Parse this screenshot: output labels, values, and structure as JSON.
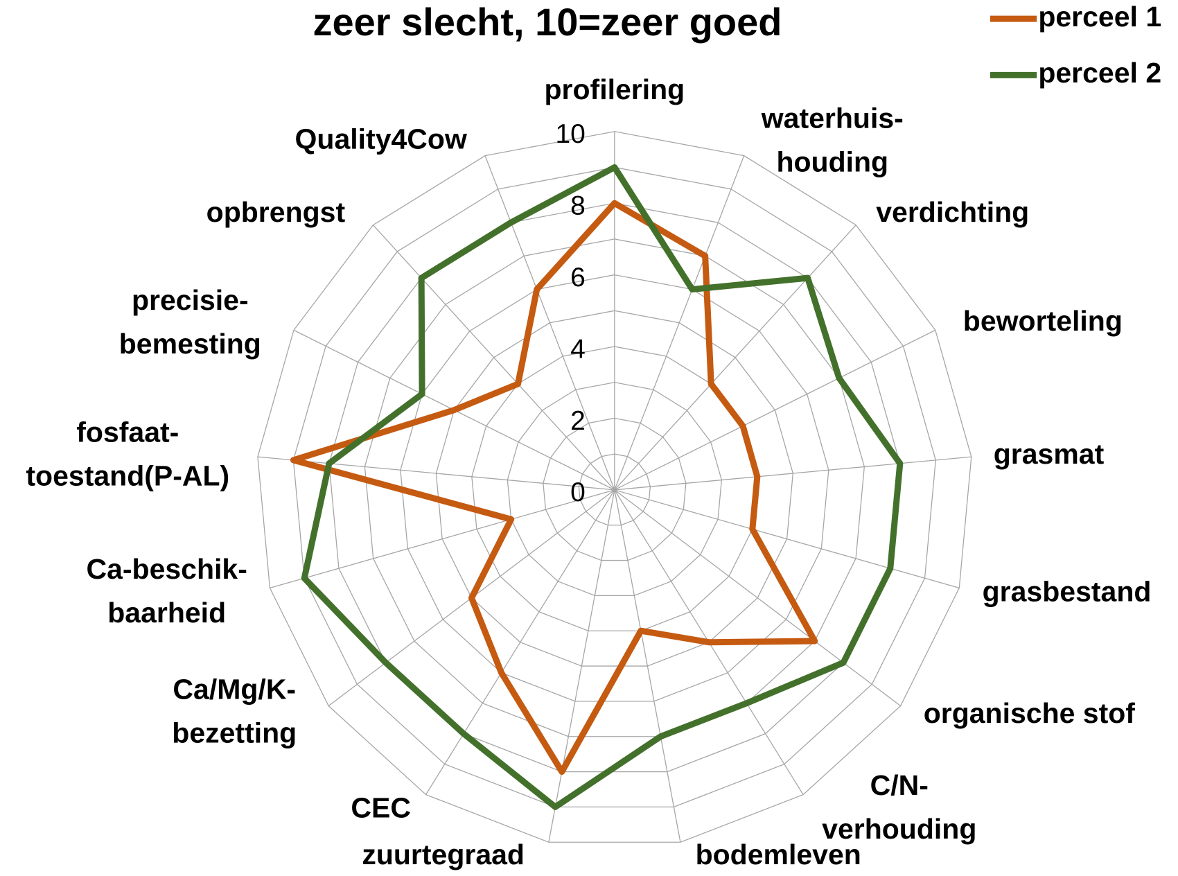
{
  "chart_data": {
    "type": "radar",
    "title": "zeer slecht, 10=zeer goed",
    "categories": [
      "profilering",
      "waterhuis-\nhouding",
      "verdichting",
      "beworteling",
      "grasmat",
      "grasbestand",
      "organische stof",
      "C/N-\nverhouding",
      "bodemleven",
      "zuurtegraad",
      "CEC",
      "Ca/Mg/K-\nbezetting",
      "Ca-beschik-\nbaarheid",
      "fosfaat-\ntoestand(P-AL)",
      "precisie-\nbemesting",
      "opbrengst",
      "Quality4Cow"
    ],
    "series": [
      {
        "name": "perceel 1",
        "color": "#c55a11",
        "values": [
          8,
          7,
          4,
          4,
          4,
          4,
          7,
          5,
          4,
          8,
          6,
          5,
          3,
          9,
          5,
          4,
          6
        ]
      },
      {
        "name": "perceel 2",
        "color": "#43712b",
        "values": [
          9,
          6,
          8,
          7,
          8,
          8,
          8,
          7,
          7,
          9,
          8,
          8,
          9,
          8,
          6,
          8,
          8
        ]
      }
    ],
    "rlim": [
      0,
      10
    ],
    "rticks": [
      0,
      2,
      4,
      6,
      8,
      10
    ],
    "grid": true,
    "legend": "top-right"
  }
}
